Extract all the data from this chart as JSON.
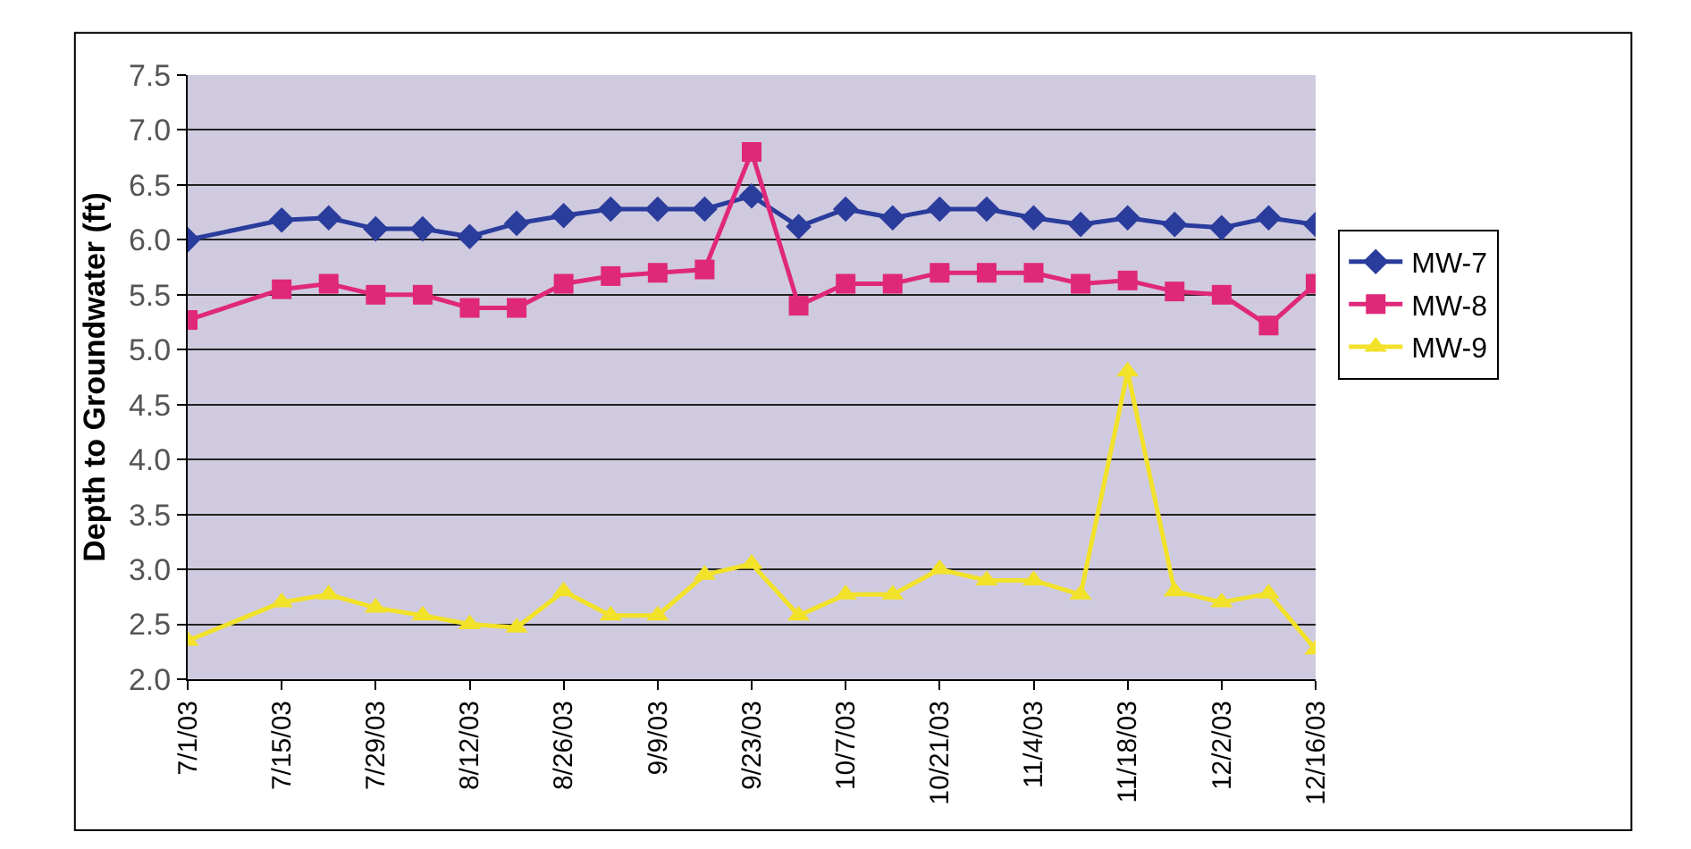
{
  "chart_data": {
    "type": "line",
    "ylabel": "Depth to Groundwater (ft)",
    "x": [
      "--07-01",
      "--07-15",
      "--07-22",
      "--07-29",
      "--08-05",
      "--08-12",
      "--08-19",
      "--08-26",
      "--09-02",
      "--09-09",
      "--09-16",
      "--09-23",
      "--09-30",
      "--10-07",
      "--10-14",
      "--10-21",
      "--10-28",
      "--11-04",
      "--11-11",
      "--11-18",
      "--11-25",
      "--12-02",
      "--12-09",
      "--12-16"
    ],
    "series": [
      {
        "name": "MW-7",
        "color": "#2a3c9c",
        "marker": "diamond",
        "values": [
          6.0,
          6.18,
          6.2,
          6.1,
          6.1,
          6.03,
          6.15,
          6.22,
          6.28,
          6.28,
          6.28,
          6.4,
          6.12,
          6.28,
          6.2,
          6.28,
          6.28,
          6.2,
          6.14,
          6.2,
          6.14,
          6.11,
          6.2,
          6.14
        ]
      },
      {
        "name": "MW-8",
        "color": "#e0287a",
        "marker": "square",
        "values": [
          5.27,
          5.55,
          5.6,
          5.5,
          5.5,
          5.38,
          5.38,
          5.6,
          5.67,
          5.7,
          5.73,
          6.8,
          5.4,
          5.6,
          5.6,
          5.7,
          5.7,
          5.7,
          5.6,
          5.63,
          5.53,
          5.5,
          5.22,
          5.6
        ]
      },
      {
        "name": "MW-9",
        "color": "#f2e22a",
        "marker": "triangle",
        "values": [
          2.35,
          2.7,
          2.77,
          2.65,
          2.58,
          2.5,
          2.47,
          2.8,
          2.58,
          2.58,
          2.95,
          3.05,
          2.58,
          2.77,
          2.77,
          3.0,
          2.9,
          2.9,
          2.77,
          4.8,
          2.8,
          2.7,
          2.78,
          2.27
        ]
      }
    ],
    "xlim": [
      "--07-01",
      "--12-16"
    ],
    "xticks": [
      {
        "value": "--07-01",
        "label": "7/1/03"
      },
      {
        "value": "--07-15",
        "label": "7/15/03"
      },
      {
        "value": "--07-29",
        "label": "7/29/03"
      },
      {
        "value": "--08-12",
        "label": "8/12/03"
      },
      {
        "value": "--08-26",
        "label": "8/26/03"
      },
      {
        "value": "--09-09",
        "label": "9/9/03"
      },
      {
        "value": "--09-23",
        "label": "9/23/03"
      },
      {
        "value": "--10-07",
        "label": "10/7/03"
      },
      {
        "value": "--10-21",
        "label": "10/21/03"
      },
      {
        "value": "--11-04",
        "label": "11/4/03"
      },
      {
        "value": "--11-18",
        "label": "11/18/03"
      },
      {
        "value": "--12-02",
        "label": "12/2/03"
      },
      {
        "value": "--12-16",
        "label": "12/16/03"
      }
    ],
    "ylim": [
      2.0,
      7.5
    ],
    "yticks": [
      {
        "value": 2.0,
        "label": "2.0"
      },
      {
        "value": 2.5,
        "label": "2.5"
      },
      {
        "value": 3.0,
        "label": "3.0"
      },
      {
        "value": 3.5,
        "label": "3.5"
      },
      {
        "value": 4.0,
        "label": "4.0"
      },
      {
        "value": 4.5,
        "label": "4.5"
      },
      {
        "value": 5.0,
        "label": "5.0"
      },
      {
        "value": 5.5,
        "label": "5.5"
      },
      {
        "value": 6.0,
        "label": "6.0"
      },
      {
        "value": 6.5,
        "label": "6.5"
      },
      {
        "value": 7.0,
        "label": "7.0"
      },
      {
        "value": 7.5,
        "label": "7.5"
      }
    ],
    "grid": "y",
    "legend": "right",
    "line_style": "solid"
  }
}
